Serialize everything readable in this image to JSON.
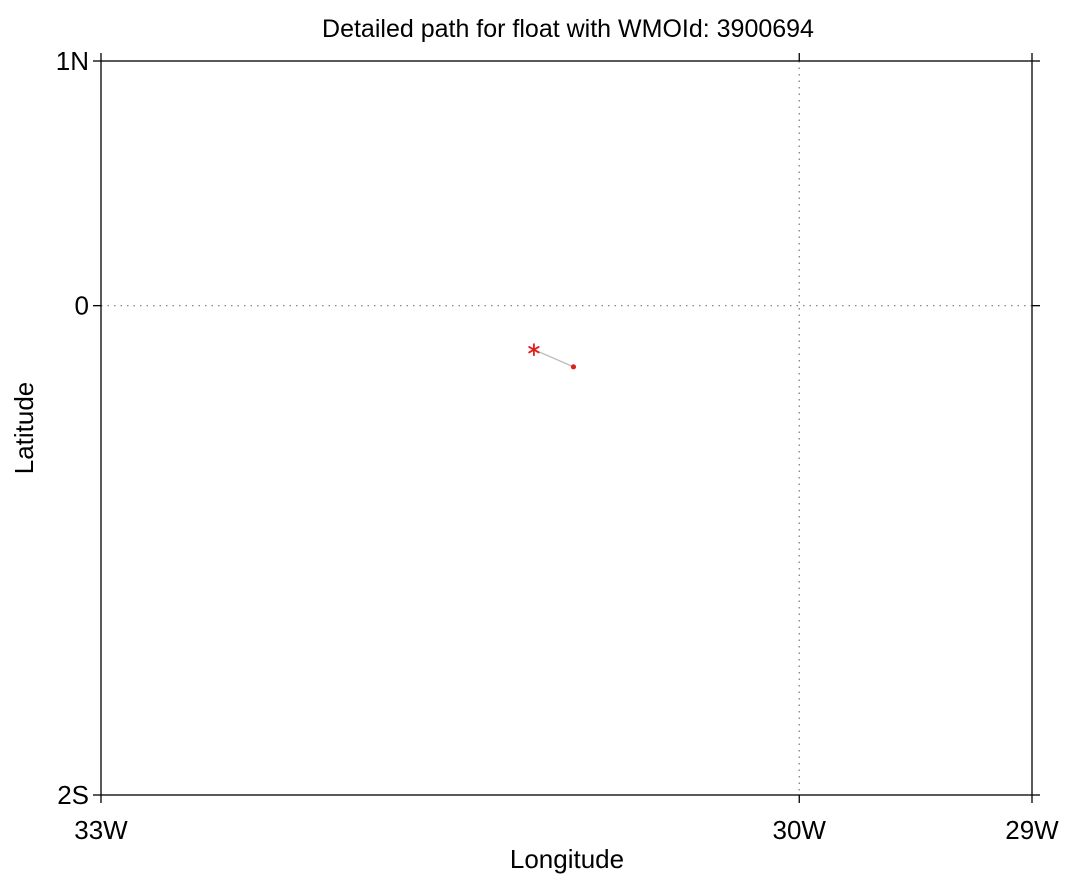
{
  "chart_data": {
    "type": "scatter",
    "title": "Detailed path for float with WMOId: 3900694",
    "xlabel": "Longitude",
    "ylabel": "Latitude",
    "xlim": [
      -33,
      -29
    ],
    "ylim": [
      -2,
      1
    ],
    "x_ticks": [
      {
        "value": -33,
        "label": "33W"
      },
      {
        "value": -30,
        "label": "30W"
      },
      {
        "value": -29,
        "label": "29W"
      }
    ],
    "y_ticks": [
      {
        "value": 1,
        "label": "1N"
      },
      {
        "value": 0,
        "label": "0"
      },
      {
        "value": -2,
        "label": "2S"
      }
    ],
    "gridlines": {
      "lon": [
        -30
      ],
      "lat": [
        0
      ],
      "style": "dotted"
    },
    "series": [
      {
        "points": [
          {
            "lon": -31.14,
            "lat": -0.18,
            "marker": "asterisk"
          },
          {
            "lon": -30.97,
            "lat": -0.25,
            "marker": "dot"
          }
        ],
        "marker_color": "#e0201c",
        "line_color": "#b8b8b8"
      }
    ]
  }
}
